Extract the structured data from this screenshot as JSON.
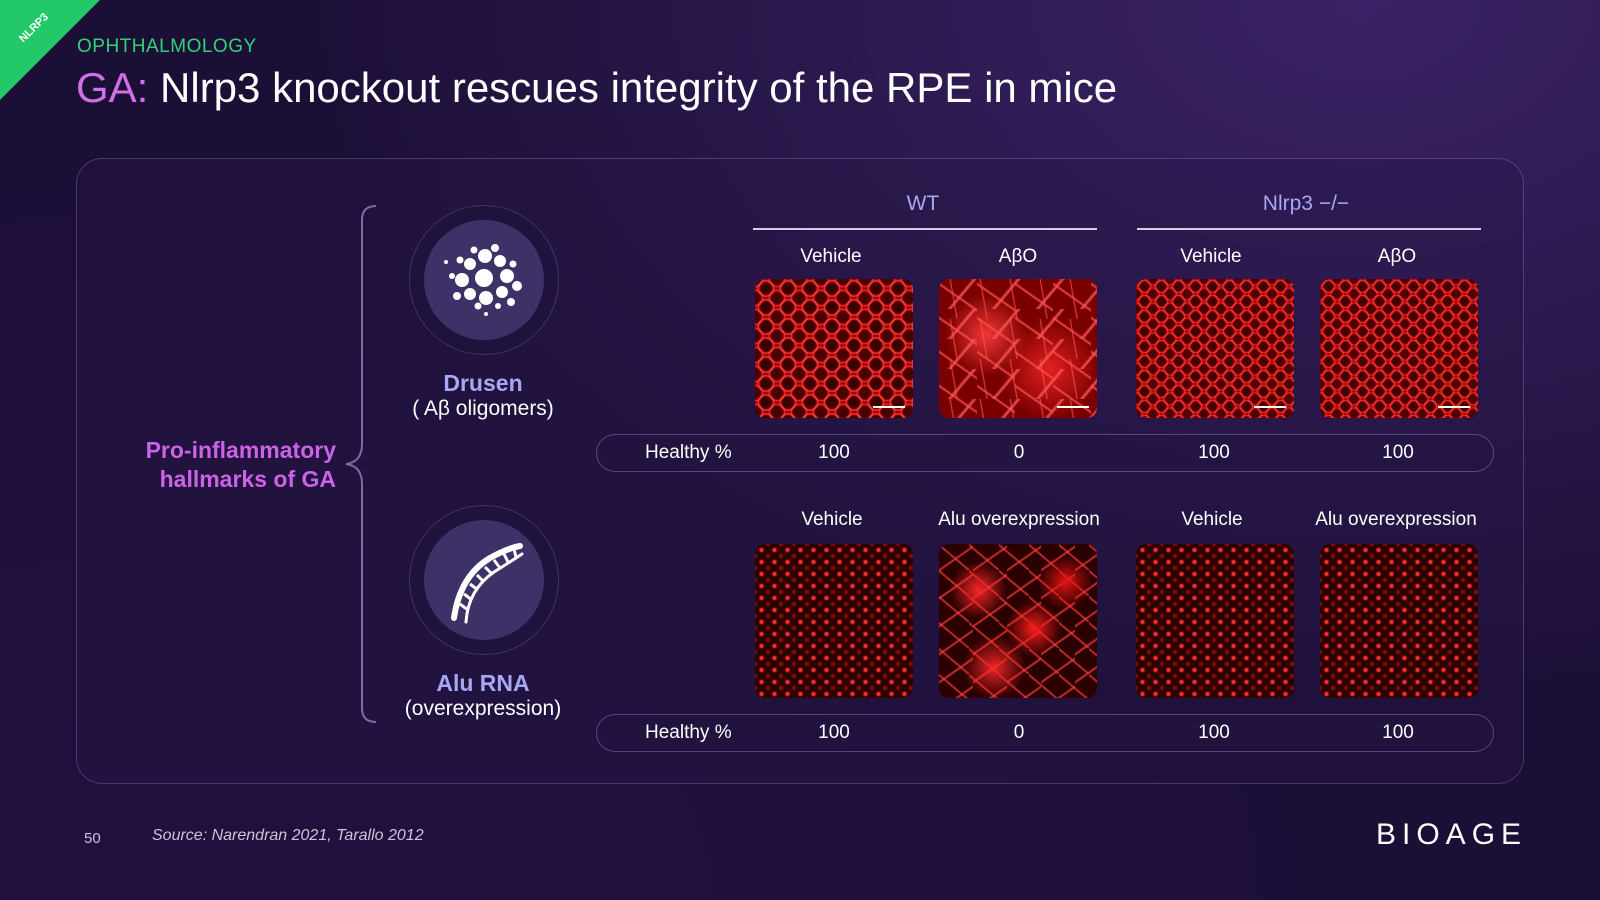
{
  "ribbon": "NLRP3",
  "kicker": "OPHTHALMOLOGY",
  "title": {
    "accent": "GA:",
    "text": " Nlrp3 knockout rescues integrity of the RPE in mice"
  },
  "hallmarks": {
    "line1": "Pro-inflammatory",
    "line2": "hallmarks of GA"
  },
  "conditions": [
    {
      "name": "Drusen",
      "sub": "( Aβ oligomers)",
      "icon": "drusen-icon"
    },
    {
      "name": "Alu RNA",
      "sub": "(overexpression)",
      "icon": "rna-strand-icon"
    }
  ],
  "groups": [
    {
      "label": "WT"
    },
    {
      "label": "Nlrp3 −/−"
    }
  ],
  "rows": [
    {
      "columns": [
        "Vehicle",
        "AβO",
        "Vehicle",
        "AβO"
      ],
      "healthy_label": "Healthy %",
      "healthy_values": [
        "100",
        "0",
        "100",
        "100"
      ]
    },
    {
      "columns": [
        "Vehicle",
        "Alu overexpression",
        "Vehicle",
        "Alu overexpression"
      ],
      "healthy_label": "Healthy %",
      "healthy_values": [
        "100",
        "0",
        "100",
        "100"
      ]
    }
  ],
  "footer": {
    "page": "50",
    "source": "Source: Narendran 2021, Tarallo 2012",
    "logo": "BIOAGE"
  },
  "colors": {
    "accent_green": "#22c86a",
    "accent_purple": "#d070e8",
    "label_lilac": "#a7a8f4"
  }
}
